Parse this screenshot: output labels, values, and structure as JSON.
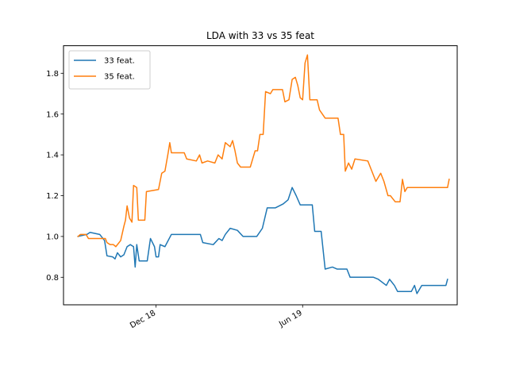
{
  "chart_data": {
    "type": "line",
    "title": "LDA with 33 vs 35 feat",
    "xlabel": "",
    "ylabel": "",
    "x_range": [
      "2018-08-08",
      "2019-12-10"
    ],
    "ylim": [
      0.665,
      1.935
    ],
    "y_ticks": [
      0.8,
      1.0,
      1.2,
      1.4,
      1.6,
      1.8
    ],
    "x_ticks": [
      {
        "date": "2018-12-01",
        "label": "Dec 18"
      },
      {
        "date": "2019-06-01",
        "label": "Jun 19"
      }
    ],
    "grid": false,
    "legend": {
      "position": "top-left"
    },
    "series": [
      {
        "name": "33 feat.",
        "color": "#1f77b4",
        "points": [
          [
            "2018-08-26",
            1.0
          ],
          [
            "2018-09-06",
            1.01
          ],
          [
            "2018-09-10",
            1.02
          ],
          [
            "2018-09-22",
            1.01
          ],
          [
            "2018-09-28",
            0.98
          ],
          [
            "2018-10-01",
            0.905
          ],
          [
            "2018-10-08",
            0.9
          ],
          [
            "2018-10-11",
            0.89
          ],
          [
            "2018-10-14",
            0.92
          ],
          [
            "2018-10-18",
            0.9
          ],
          [
            "2018-10-22",
            0.91
          ],
          [
            "2018-10-26",
            0.95
          ],
          [
            "2018-10-30",
            0.96
          ],
          [
            "2018-11-03",
            0.95
          ],
          [
            "2018-11-05",
            0.85
          ],
          [
            "2018-11-07",
            0.96
          ],
          [
            "2018-11-10",
            0.88
          ],
          [
            "2018-11-20",
            0.88
          ],
          [
            "2018-11-24",
            0.99
          ],
          [
            "2018-11-29",
            0.95
          ],
          [
            "2018-12-01",
            0.9
          ],
          [
            "2018-12-04",
            0.9
          ],
          [
            "2018-12-06",
            0.96
          ],
          [
            "2018-12-12",
            0.95
          ],
          [
            "2018-12-20",
            1.01
          ],
          [
            "2019-01-25",
            1.01
          ],
          [
            "2019-01-28",
            0.97
          ],
          [
            "2019-02-10",
            0.96
          ],
          [
            "2019-02-17",
            0.99
          ],
          [
            "2019-02-21",
            0.98
          ],
          [
            "2019-02-25",
            1.01
          ],
          [
            "2019-03-03",
            1.04
          ],
          [
            "2019-03-12",
            1.03
          ],
          [
            "2019-03-19",
            1.0
          ],
          [
            "2019-04-05",
            1.0
          ],
          [
            "2019-04-12",
            1.04
          ],
          [
            "2019-04-18",
            1.14
          ],
          [
            "2019-04-28",
            1.14
          ],
          [
            "2019-05-08",
            1.16
          ],
          [
            "2019-05-14",
            1.18
          ],
          [
            "2019-05-19",
            1.24
          ],
          [
            "2019-05-24",
            1.2
          ],
          [
            "2019-05-29",
            1.155
          ],
          [
            "2019-06-13",
            1.155
          ],
          [
            "2019-06-16",
            1.025
          ],
          [
            "2019-06-24",
            1.025
          ],
          [
            "2019-06-29",
            0.84
          ],
          [
            "2019-07-08",
            0.85
          ],
          [
            "2019-07-14",
            0.84
          ],
          [
            "2019-07-26",
            0.84
          ],
          [
            "2019-07-30",
            0.8
          ],
          [
            "2019-08-28",
            0.8
          ],
          [
            "2019-09-03",
            0.79
          ],
          [
            "2019-09-13",
            0.76
          ],
          [
            "2019-09-17",
            0.79
          ],
          [
            "2019-09-23",
            0.76
          ],
          [
            "2019-09-27",
            0.73
          ],
          [
            "2019-10-14",
            0.73
          ],
          [
            "2019-10-18",
            0.76
          ],
          [
            "2019-10-21",
            0.72
          ],
          [
            "2019-10-27",
            0.76
          ],
          [
            "2019-11-26",
            0.76
          ],
          [
            "2019-11-28",
            0.79
          ]
        ]
      },
      {
        "name": "35 feat.",
        "color": "#ff7f0e",
        "points": [
          [
            "2018-08-26",
            1.0
          ],
          [
            "2018-08-29",
            1.01
          ],
          [
            "2018-09-05",
            1.01
          ],
          [
            "2018-09-08",
            0.99
          ],
          [
            "2018-09-29",
            0.99
          ],
          [
            "2018-10-01",
            0.97
          ],
          [
            "2018-10-05",
            0.96
          ],
          [
            "2018-10-09",
            0.96
          ],
          [
            "2018-10-12",
            0.95
          ],
          [
            "2018-10-18",
            0.98
          ],
          [
            "2018-10-22",
            1.05
          ],
          [
            "2018-10-24",
            1.08
          ],
          [
            "2018-10-26",
            1.15
          ],
          [
            "2018-10-29",
            1.09
          ],
          [
            "2018-11-01",
            1.07
          ],
          [
            "2018-11-03",
            1.25
          ],
          [
            "2018-11-07",
            1.24
          ],
          [
            "2018-11-09",
            1.08
          ],
          [
            "2018-11-17",
            1.08
          ],
          [
            "2018-11-19",
            1.22
          ],
          [
            "2018-12-04",
            1.23
          ],
          [
            "2018-12-08",
            1.31
          ],
          [
            "2018-12-12",
            1.32
          ],
          [
            "2018-12-16",
            1.41
          ],
          [
            "2018-12-18",
            1.46
          ],
          [
            "2018-12-20",
            1.41
          ],
          [
            "2019-01-05",
            1.41
          ],
          [
            "2019-01-08",
            1.38
          ],
          [
            "2019-01-20",
            1.37
          ],
          [
            "2019-01-24",
            1.4
          ],
          [
            "2019-01-27",
            1.36
          ],
          [
            "2019-02-03",
            1.37
          ],
          [
            "2019-02-12",
            1.36
          ],
          [
            "2019-02-16",
            1.4
          ],
          [
            "2019-02-21",
            1.38
          ],
          [
            "2019-02-25",
            1.46
          ],
          [
            "2019-03-03",
            1.44
          ],
          [
            "2019-03-06",
            1.47
          ],
          [
            "2019-03-09",
            1.42
          ],
          [
            "2019-03-12",
            1.36
          ],
          [
            "2019-03-16",
            1.34
          ],
          [
            "2019-03-28",
            1.34
          ],
          [
            "2019-04-03",
            1.42
          ],
          [
            "2019-04-06",
            1.42
          ],
          [
            "2019-04-09",
            1.5
          ],
          [
            "2019-04-13",
            1.5
          ],
          [
            "2019-04-16",
            1.71
          ],
          [
            "2019-04-22",
            1.7
          ],
          [
            "2019-04-25",
            1.72
          ],
          [
            "2019-05-07",
            1.72
          ],
          [
            "2019-05-10",
            1.66
          ],
          [
            "2019-05-15",
            1.67
          ],
          [
            "2019-05-19",
            1.77
          ],
          [
            "2019-05-23",
            1.78
          ],
          [
            "2019-05-26",
            1.74
          ],
          [
            "2019-05-29",
            1.68
          ],
          [
            "2019-06-01",
            1.67
          ],
          [
            "2019-06-04",
            1.85
          ],
          [
            "2019-06-07",
            1.89
          ],
          [
            "2019-06-10",
            1.67
          ],
          [
            "2019-06-19",
            1.67
          ],
          [
            "2019-06-22",
            1.62
          ],
          [
            "2019-06-29",
            1.58
          ],
          [
            "2019-07-15",
            1.58
          ],
          [
            "2019-07-18",
            1.5
          ],
          [
            "2019-07-22",
            1.5
          ],
          [
            "2019-07-24",
            1.32
          ],
          [
            "2019-07-28",
            1.36
          ],
          [
            "2019-08-01",
            1.33
          ],
          [
            "2019-08-05",
            1.38
          ],
          [
            "2019-08-21",
            1.37
          ],
          [
            "2019-08-25",
            1.33
          ],
          [
            "2019-08-31",
            1.27
          ],
          [
            "2019-09-06",
            1.31
          ],
          [
            "2019-09-10",
            1.27
          ],
          [
            "2019-09-15",
            1.2
          ],
          [
            "2019-09-18",
            1.2
          ],
          [
            "2019-09-24",
            1.17
          ],
          [
            "2019-09-30",
            1.17
          ],
          [
            "2019-10-03",
            1.28
          ],
          [
            "2019-10-06",
            1.22
          ],
          [
            "2019-10-09",
            1.24
          ],
          [
            "2019-11-28",
            1.24
          ],
          [
            "2019-11-30",
            1.28
          ]
        ]
      }
    ]
  }
}
